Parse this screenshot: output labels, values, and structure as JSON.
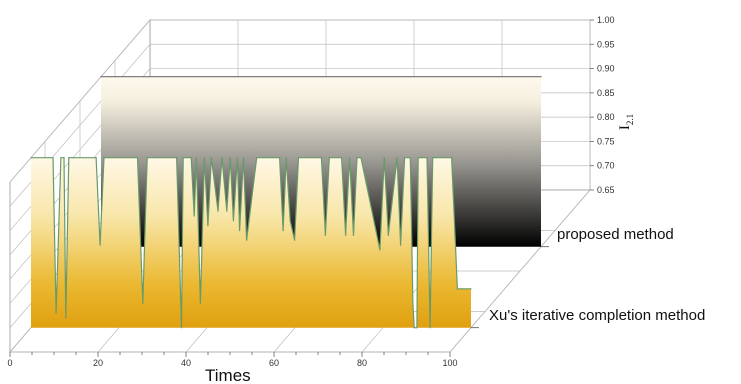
{
  "chart_data": {
    "type": "area",
    "xlabel": "Times",
    "ylabel_main": "I",
    "ylabel_sub": "2.1",
    "x_ticks": [
      0,
      20,
      40,
      60,
      80,
      100
    ],
    "y_ticks": [
      "0.65",
      "0.70",
      "0.75",
      "0.80",
      "0.85",
      "0.90",
      "0.95",
      "1.00"
    ],
    "xlim": [
      0,
      100
    ],
    "ylim": [
      0.65,
      1.0
    ],
    "categories": [
      "Xu's iterative completion method",
      "proposed method"
    ],
    "series": [
      {
        "name": "proposed method",
        "x": [
          0,
          100
        ],
        "values": [
          1.0,
          1.0
        ]
      },
      {
        "name": "Xu's iterative completion method",
        "x": [
          0,
          5,
          5.7,
          6.8,
          7.5,
          7.9,
          8.6,
          9.7,
          14.8,
          15.7,
          16.6,
          24.2,
          25.4,
          26.4,
          27.8,
          33.1,
          34.2,
          34.6,
          35.4,
          36.4,
          37.1,
          37.6,
          38.5,
          39.4,
          40.2,
          41,
          42.5,
          43.4,
          44.5,
          45.3,
          46,
          46.9,
          47.4,
          48.3,
          49,
          51.3,
          56.5,
          57.3,
          58,
          58.9,
          59.9,
          60.8,
          66,
          66.9,
          67.8,
          70.6,
          71.5,
          72.4,
          73.3,
          74.1,
          75,
          79.3,
          80.3,
          81.2,
          83.2,
          84,
          84.9,
          86.2,
          86.8,
          87.1,
          87.7,
          88,
          88.4,
          90,
          90.7,
          91.3,
          92.2,
          95.6,
          96.9,
          100
        ],
        "values": [
          1.0,
          1.0,
          0.68,
          1.0,
          1.0,
          0.67,
          1.0,
          1.0,
          1.0,
          0.82,
          1.0,
          1.0,
          0.7,
          1.0,
          1.0,
          1.0,
          0.65,
          1.0,
          1.0,
          1.0,
          0.88,
          1.0,
          0.7,
          1.0,
          0.86,
          1.0,
          0.89,
          1.0,
          0.89,
          1.0,
          0.87,
          1.0,
          0.85,
          1.0,
          0.83,
          1.0,
          1.0,
          0.85,
          1.0,
          0.87,
          0.83,
          1.0,
          1.0,
          0.84,
          1.0,
          1.0,
          0.84,
          1.0,
          0.84,
          1.0,
          1.0,
          0.81,
          1.0,
          0.84,
          1.0,
          0.82,
          1.0,
          1.0,
          0.7,
          0.65,
          0.65,
          1.0,
          1.0,
          1.0,
          0.65,
          1.0,
          1.0,
          1.0,
          0.73,
          0.73
        ]
      }
    ]
  }
}
